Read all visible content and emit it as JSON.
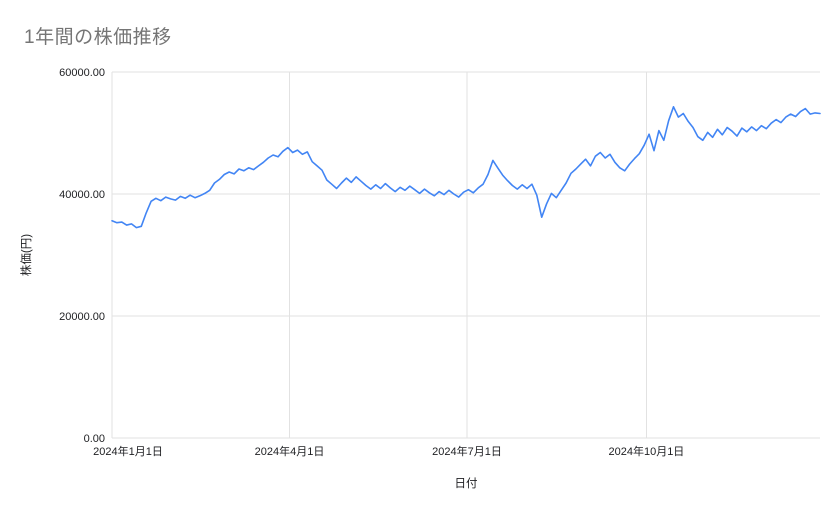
{
  "chart_data": {
    "type": "line",
    "title": "1年間の株価推移",
    "xlabel": "日付",
    "ylabel": "株価(円)",
    "series_color": "#4285f4",
    "grid_color": "#e2e2e2",
    "ylim": [
      0,
      60000
    ],
    "y_ticks": [
      {
        "value": 0,
        "label": "0.00"
      },
      {
        "value": 20000,
        "label": "20000.00"
      },
      {
        "value": 40000,
        "label": "40000.00"
      },
      {
        "value": 60000,
        "label": "60000.00"
      }
    ],
    "x_range_days": [
      0,
      363
    ],
    "x_ticks": [
      {
        "day": 0,
        "label": "2024年1月1日"
      },
      {
        "day": 91,
        "label": "2024年4月1日"
      },
      {
        "day": 182,
        "label": "2024年7月1日"
      },
      {
        "day": 274,
        "label": "2024年10月1日"
      }
    ],
    "values": [
      35600,
      35300,
      35400,
      34900,
      35100,
      34500,
      34700,
      36900,
      38800,
      39300,
      38900,
      39500,
      39200,
      39000,
      39600,
      39300,
      39800,
      39400,
      39700,
      40100,
      40600,
      41800,
      42400,
      43200,
      43600,
      43300,
      44100,
      43800,
      44300,
      44000,
      44600,
      45200,
      45900,
      46400,
      46100,
      47000,
      47600,
      46800,
      47200,
      46500,
      46900,
      45300,
      44600,
      43900,
      42300,
      41600,
      40900,
      41800,
      42600,
      41900,
      42800,
      42100,
      41400,
      40800,
      41500,
      40900,
      41700,
      41000,
      40400,
      41100,
      40600,
      41300,
      40700,
      40100,
      40800,
      40200,
      39700,
      40400,
      39900,
      40600,
      40000,
      39500,
      40300,
      40700,
      40200,
      41000,
      41600,
      43200,
      45500,
      44300,
      43100,
      42200,
      41400,
      40800,
      41500,
      40900,
      41600,
      39800,
      36200,
      38400,
      40100,
      39400,
      40600,
      41800,
      43400,
      44100,
      44900,
      45700,
      44600,
      46200,
      46800,
      45900,
      46500,
      45200,
      44300,
      43800,
      44900,
      45800,
      46600,
      48000,
      49800,
      47100,
      50400,
      48800,
      52000,
      54300,
      52600,
      53200,
      51900,
      50900,
      49400,
      48800,
      50100,
      49300,
      50600,
      49700,
      50900,
      50300,
      49500,
      50800,
      50200,
      51000,
      50400,
      51200,
      50700,
      51600,
      52200,
      51700,
      52600,
      53100,
      52700,
      53500,
      54000,
      53100,
      53300,
      53200
    ]
  }
}
